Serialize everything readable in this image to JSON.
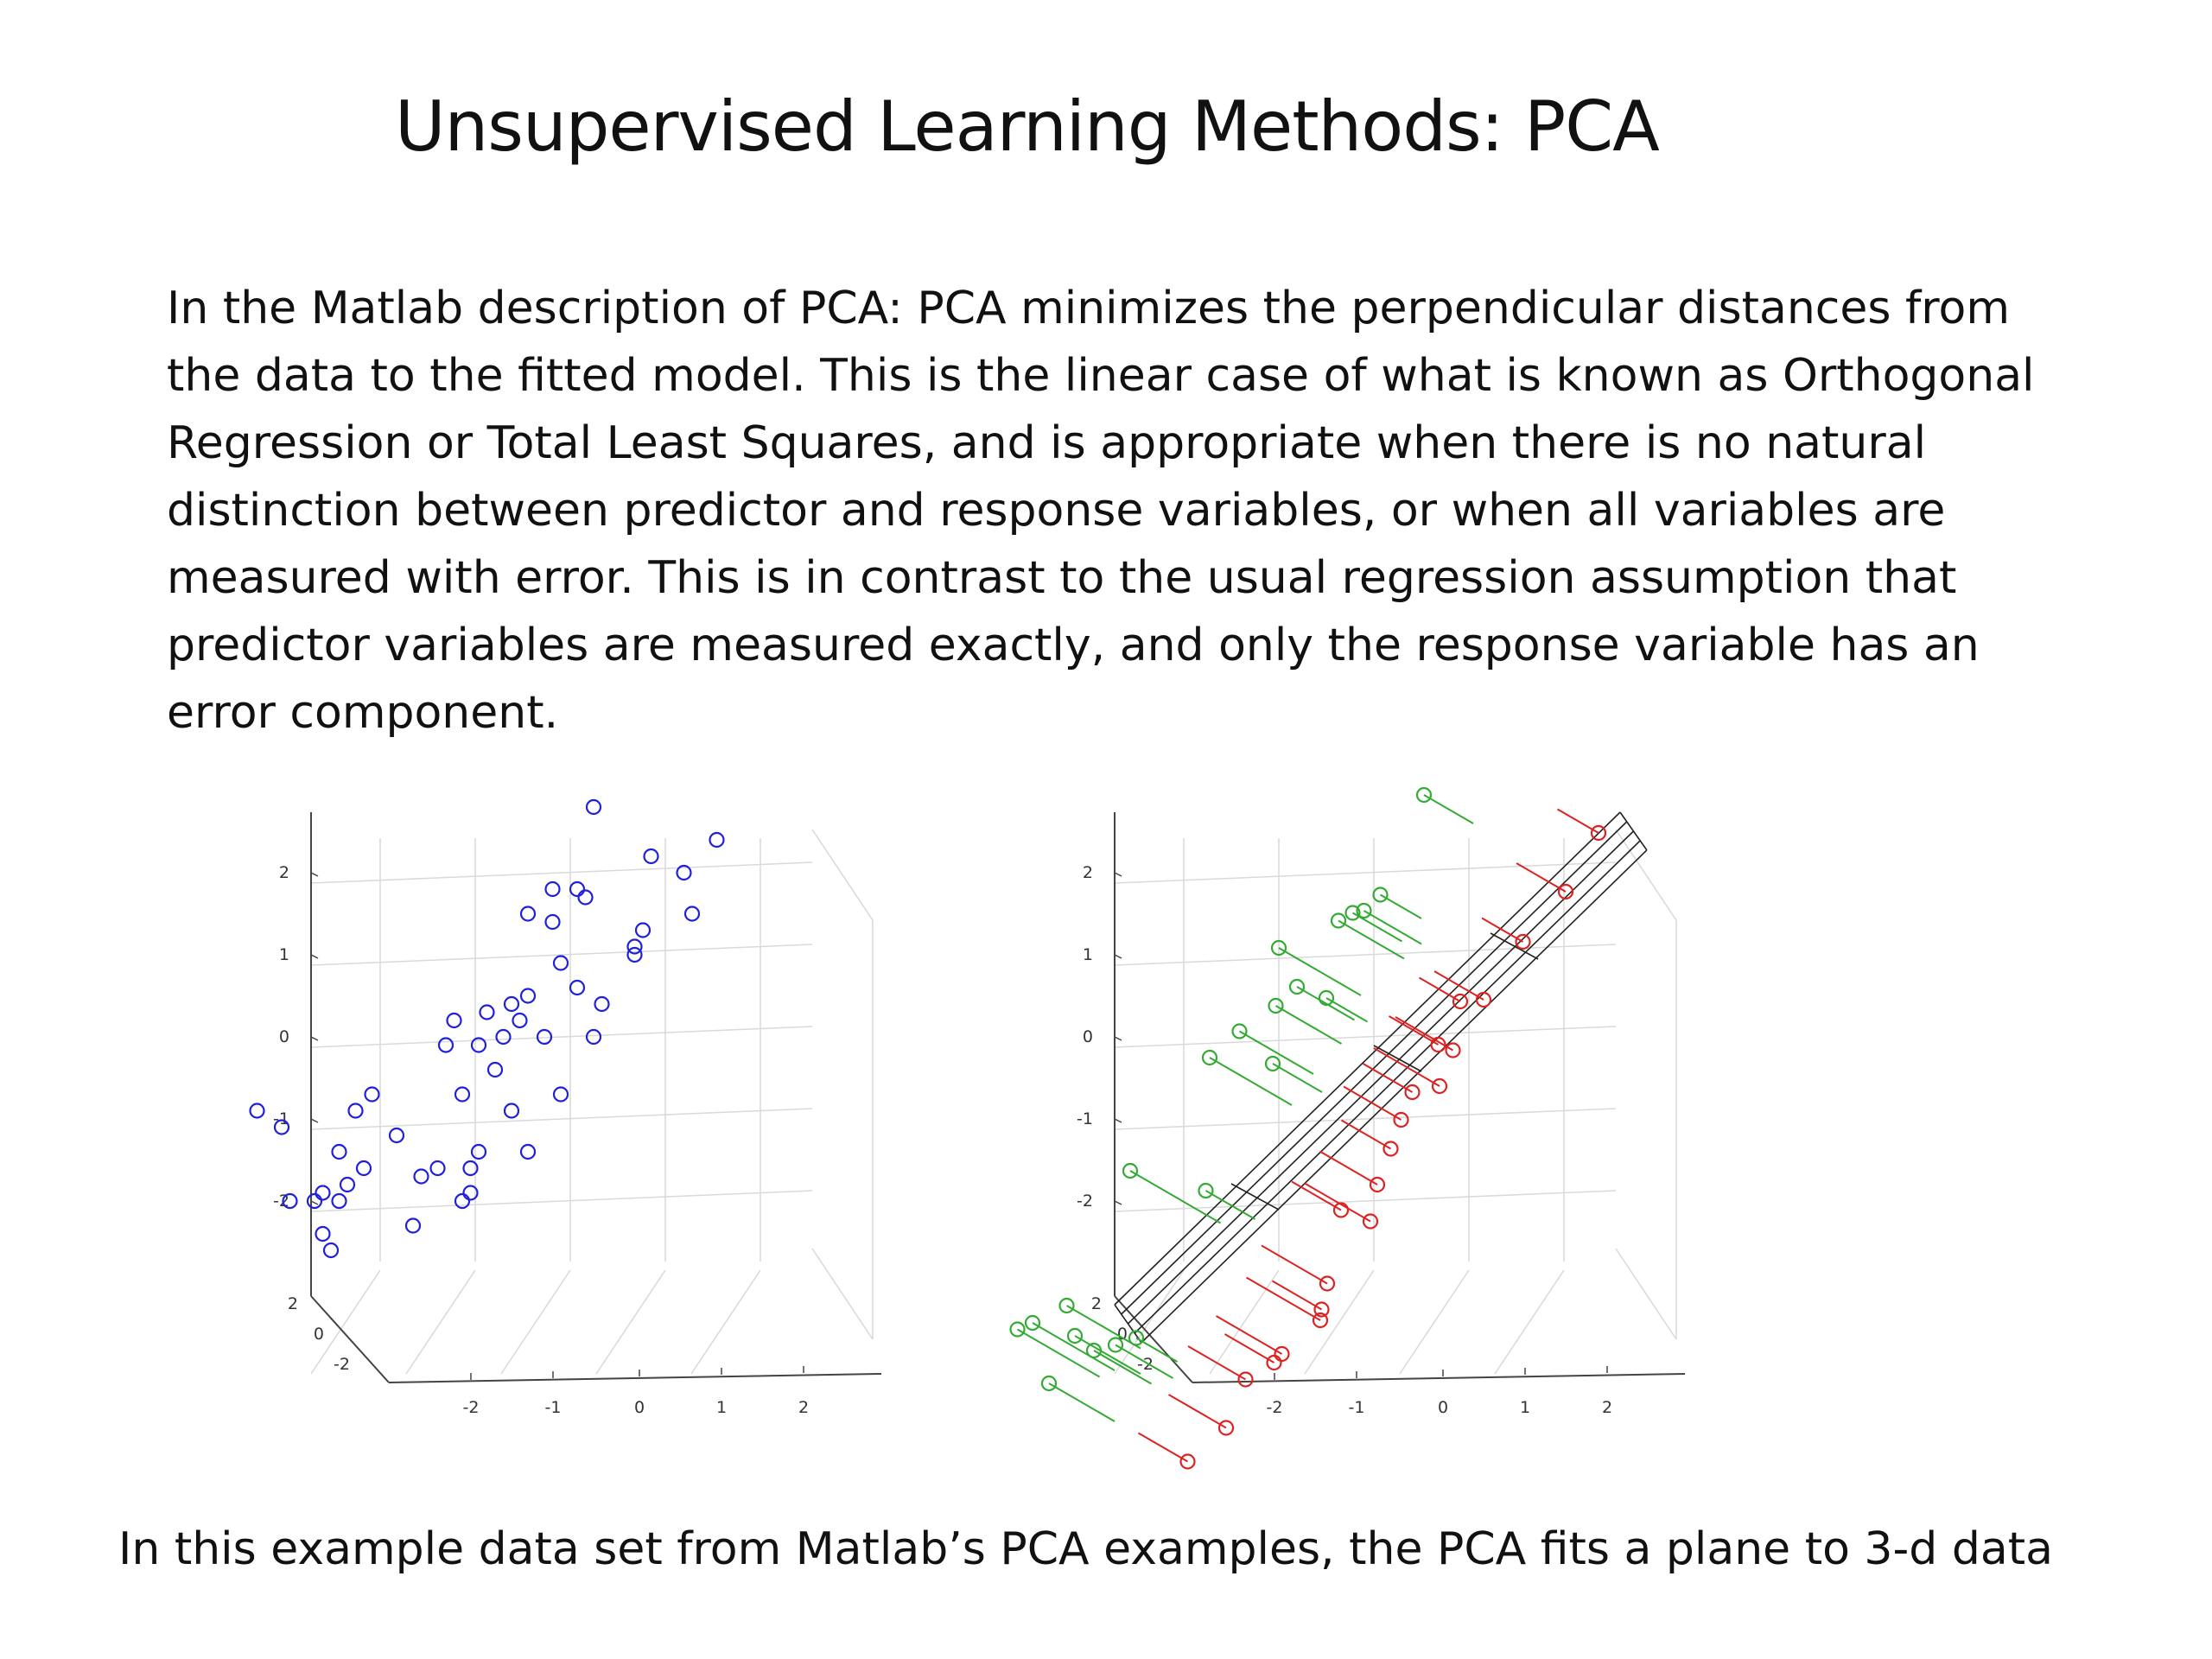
{
  "slide": {
    "title": "Unsupervised Learning Methods: PCA",
    "body_lines": [
      "In the Matlab description of PCA: PCA minimizes the perpendicular distances from",
      "the data to the fitted model. This is the linear case of what is known as Orthogonal",
      "Regression or Total Least Squares, and is appropriate when there is no natural",
      "distinction between predictor and response variables, or when all variables are",
      "measured with error. This is in contrast to the usual regression assumption that",
      "predictor variables are measured exactly, and only the response variable has an",
      "error component."
    ],
    "caption": "In this example data set from Matlab’s PCA examples, the PCA fits a plane to 3-d data"
  },
  "chart_data": [
    {
      "type": "scatter",
      "projection": "3d",
      "title": "",
      "marker": "open-circle",
      "color": "#1f1fdd",
      "x_ticks": [
        "-2",
        "-1",
        "0",
        "1",
        "2"
      ],
      "y_ticks": [
        "-2",
        "0",
        "2"
      ],
      "z_ticks": [
        "-2",
        "-1",
        "0",
        "1",
        "2"
      ],
      "points_projected": [
        [
          -2.3,
          -1.5
        ],
        [
          -2.0,
          -1.7
        ],
        [
          -1.1,
          -1.5
        ],
        [
          -0.9,
          -1.3
        ],
        [
          -1.3,
          -2.0
        ],
        [
          -1.0,
          -2.2
        ],
        [
          -1.2,
          -2.4
        ],
        [
          -1.6,
          -2.6
        ],
        [
          -1.9,
          -2.6
        ],
        [
          -1.5,
          -2.5
        ],
        [
          -1.3,
          -2.6
        ],
        [
          -1.5,
          -3.0
        ],
        [
          -1.4,
          -3.2
        ],
        [
          -0.3,
          -2.3
        ],
        [
          -0.4,
          -2.9
        ],
        [
          -0.1,
          -2.2
        ],
        [
          0.3,
          -2.2
        ],
        [
          0.3,
          -2.5
        ],
        [
          0.2,
          -2.6
        ],
        [
          0.0,
          -0.7
        ],
        [
          0.1,
          -0.4
        ],
        [
          0.4,
          -0.7
        ],
        [
          0.5,
          -0.3
        ],
        [
          0.9,
          -0.4
        ],
        [
          0.8,
          -0.2
        ],
        [
          1.0,
          -0.1
        ],
        [
          0.7,
          -0.6
        ],
        [
          1.2,
          -0.6
        ],
        [
          1.6,
          0.0
        ],
        [
          1.9,
          -0.2
        ],
        [
          1.4,
          0.3
        ],
        [
          1.3,
          0.8
        ],
        [
          1.0,
          0.9
        ],
        [
          1.3,
          1.2
        ],
        [
          1.6,
          1.2
        ],
        [
          1.7,
          1.1
        ],
        [
          2.3,
          0.5
        ],
        [
          2.9,
          1.4
        ],
        [
          2.5,
          1.6
        ],
        [
          1.8,
          2.2
        ],
        [
          3.3,
          1.8
        ],
        [
          3.0,
          0.9
        ],
        [
          2.3,
          0.4
        ],
        [
          2.4,
          0.7
        ],
        [
          1.8,
          -0.6
        ],
        [
          1.4,
          -1.3
        ],
        [
          0.6,
          -1.0
        ],
        [
          0.8,
          -1.5
        ],
        [
          0.4,
          -2.0
        ],
        [
          -0.6,
          -1.8
        ],
        [
          0.2,
          -1.3
        ],
        [
          1.0,
          -2.0
        ]
      ]
    },
    {
      "type": "scatter",
      "projection": "3d",
      "title": "",
      "annotation": "fitted plane with perpendicular residual segments",
      "plane_color": "#222222",
      "above_color": "#33aa33",
      "below_color": "#dd2222",
      "x_ticks": [
        "-2",
        "-1",
        "0",
        "1",
        "2"
      ],
      "y_ticks": [
        "-2",
        "0",
        "2"
      ],
      "z_ticks": [
        "-2",
        "-1",
        "0",
        "1",
        "2"
      ],
      "residuals_above": [
        [
          -2.6,
          -1.5,
          1.0
        ],
        [
          -2.4,
          -1.6,
          1.0
        ],
        [
          -2.1,
          -1.6,
          0.9
        ],
        [
          -2.0,
          -2.0,
          0.8
        ],
        [
          -1.8,
          -2.3,
          0.7
        ],
        [
          -1.5,
          -2.5,
          0.7
        ],
        [
          -1.5,
          -2.3,
          0.5
        ],
        [
          -2.2,
          -2.4,
          0.8
        ],
        [
          -1.4,
          -0.7,
          1.1
        ],
        [
          -0.9,
          -1.1,
          0.6
        ],
        [
          -0.8,
          0.2,
          1.0
        ],
        [
          -0.6,
          0.4,
          0.9
        ],
        [
          -0.3,
          0.5,
          0.8
        ],
        [
          -0.2,
          0.7,
          0.7
        ],
        [
          -0.4,
          0.0,
          0.6
        ],
        [
          0.0,
          0.5,
          0.5
        ],
        [
          -0.2,
          1.0,
          1.0
        ],
        [
          0.3,
          1.0,
          0.8
        ],
        [
          0.5,
          1.0,
          0.7
        ],
        [
          0.2,
          1.3,
          0.6
        ],
        [
          0.4,
          1.4,
          0.5
        ],
        [
          0.8,
          2.2,
          0.6
        ]
      ],
      "residuals_below": [
        [
          -1.8,
          -2.9,
          -0.6
        ],
        [
          -1.5,
          -2.7,
          -0.7
        ],
        [
          -1.4,
          -2.2,
          -0.7
        ],
        [
          -1.1,
          -2.1,
          -0.8
        ],
        [
          -0.9,
          -2.5,
          -0.6
        ],
        [
          -0.8,
          -1.9,
          -0.9
        ],
        [
          -0.7,
          -1.6,
          -0.8
        ],
        [
          -0.4,
          -2.3,
          -0.6
        ],
        [
          -0.5,
          -1.0,
          -0.6
        ],
        [
          -0.3,
          -1.2,
          -0.8
        ],
        [
          -0.2,
          -0.9,
          -0.7
        ],
        [
          0.0,
          -0.7,
          -0.6
        ],
        [
          -0.1,
          -0.2,
          -0.7
        ],
        [
          0.1,
          -0.1,
          -0.6
        ],
        [
          0.2,
          0.0,
          -0.8
        ],
        [
          0.3,
          0.3,
          -0.6
        ],
        [
          0.4,
          0.2,
          -0.7
        ],
        [
          0.6,
          0.5,
          -0.5
        ],
        [
          0.8,
          0.4,
          -0.6
        ],
        [
          1.3,
          0.6,
          -0.5
        ],
        [
          1.6,
          1.0,
          -0.6
        ],
        [
          2.0,
          1.3,
          -0.5
        ]
      ]
    }
  ]
}
